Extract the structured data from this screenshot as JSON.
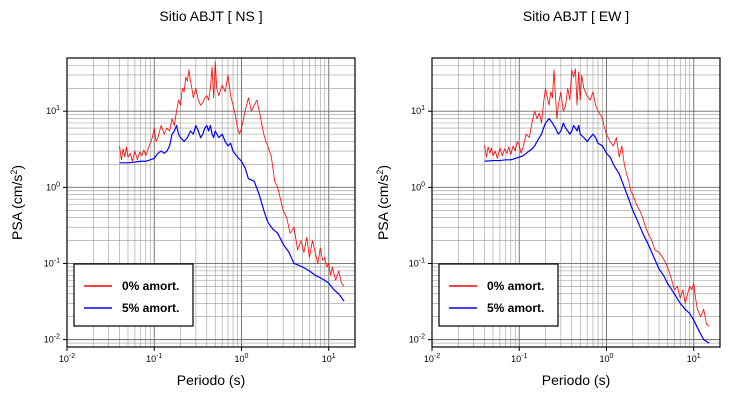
{
  "chart_data": [
    {
      "type": "line",
      "title": "Sitio ABJT [ NS ]",
      "xlabel": "Periodo (s)",
      "ylabel_main": "PSA (cm/s",
      "ylabel_sup": "2",
      "ylabel_close": ")",
      "x_scale": "log",
      "y_scale": "log",
      "xlim": [
        0.01,
        20
      ],
      "ylim": [
        0.008,
        50
      ],
      "grid": true,
      "legend_position": "bottom-left",
      "x_ticks": [
        {
          "value": 0.01,
          "base": "10",
          "exp": "-2"
        },
        {
          "value": 0.1,
          "base": "10",
          "exp": "-1"
        },
        {
          "value": 1,
          "base": "10",
          "exp": "0"
        },
        {
          "value": 10,
          "base": "10",
          "exp": "1"
        }
      ],
      "y_ticks": [
        {
          "value": 0.01,
          "base": "10",
          "exp": "-2"
        },
        {
          "value": 0.1,
          "base": "10",
          "exp": "-1"
        },
        {
          "value": 1,
          "base": "10",
          "exp": "0"
        },
        {
          "value": 10,
          "base": "10",
          "exp": "1"
        }
      ],
      "series": [
        {
          "name": "0% amort.",
          "color": "#ff0000",
          "x": [
            0.04,
            0.042,
            0.044,
            0.046,
            0.048,
            0.05,
            0.053,
            0.056,
            0.06,
            0.064,
            0.068,
            0.072,
            0.076,
            0.08,
            0.085,
            0.09,
            0.095,
            0.1,
            0.105,
            0.11,
            0.12,
            0.13,
            0.14,
            0.15,
            0.16,
            0.17,
            0.18,
            0.19,
            0.2,
            0.21,
            0.22,
            0.23,
            0.24,
            0.25,
            0.26,
            0.27,
            0.28,
            0.3,
            0.32,
            0.34,
            0.36,
            0.38,
            0.4,
            0.42,
            0.44,
            0.46,
            0.48,
            0.5,
            0.52,
            0.55,
            0.6,
            0.65,
            0.7,
            0.75,
            0.8,
            0.85,
            0.9,
            0.95,
            1.0,
            1.1,
            1.2,
            1.3,
            1.4,
            1.5,
            1.6,
            1.7,
            1.8,
            1.9,
            2.0,
            2.2,
            2.4,
            2.6,
            2.8,
            3.0,
            3.3,
            3.6,
            4.0,
            4.4,
            4.8,
            5.2,
            5.6,
            6.0,
            6.5,
            7.0,
            7.5,
            8.0,
            8.5,
            9.0,
            9.5,
            10.0,
            10.5,
            11,
            12,
            13,
            14,
            15
          ],
          "y": [
            3.5,
            2.3,
            3.2,
            2.5,
            3.4,
            2.5,
            2.8,
            2.2,
            3.0,
            2.3,
            2.9,
            2.6,
            3.1,
            2.6,
            3.2,
            3.8,
            4.5,
            6.0,
            4.0,
            4.5,
            6.5,
            5.0,
            6.0,
            5.5,
            8.0,
            6.5,
            10,
            14,
            12,
            20,
            18,
            28,
            25,
            35,
            25,
            20,
            15,
            20,
            14,
            12,
            13,
            15,
            16,
            14,
            20,
            38,
            15,
            45,
            20,
            16,
            22,
            18,
            30,
            16,
            12,
            9,
            6,
            5,
            6,
            10,
            15,
            10,
            12,
            14,
            10,
            7,
            5,
            4,
            3.5,
            2.5,
            1.2,
            1.0,
            0.7,
            0.5,
            0.4,
            0.25,
            0.3,
            0.15,
            0.2,
            0.14,
            0.22,
            0.12,
            0.2,
            0.14,
            0.1,
            0.16,
            0.11,
            0.12,
            0.09,
            0.1,
            0.07,
            0.09,
            0.06,
            0.08,
            0.055,
            0.05
          ]
        },
        {
          "name": "5% amort.",
          "color": "#0000ff",
          "x": [
            0.04,
            0.05,
            0.06,
            0.07,
            0.08,
            0.09,
            0.1,
            0.11,
            0.12,
            0.13,
            0.14,
            0.15,
            0.16,
            0.17,
            0.18,
            0.19,
            0.2,
            0.22,
            0.24,
            0.26,
            0.28,
            0.3,
            0.32,
            0.34,
            0.36,
            0.38,
            0.4,
            0.42,
            0.44,
            0.46,
            0.48,
            0.5,
            0.55,
            0.6,
            0.65,
            0.7,
            0.75,
            0.8,
            0.9,
            1.0,
            1.1,
            1.2,
            1.4,
            1.6,
            1.8,
            2.0,
            2.3,
            2.6,
            3.0,
            3.5,
            4.0,
            4.5,
            5.0,
            6.0,
            7.0,
            8.0,
            9.0,
            10.0,
            11.5,
            13.0,
            15.0
          ],
          "y": [
            2.1,
            2.1,
            2.15,
            2.2,
            2.2,
            2.3,
            2.4,
            2.8,
            3.0,
            2.8,
            3.0,
            3.5,
            5.0,
            5.5,
            6.5,
            5.0,
            4.5,
            4.0,
            4.5,
            5.5,
            5.0,
            6.5,
            5.5,
            4.5,
            5.0,
            6.0,
            6.5,
            5.5,
            6.5,
            5.0,
            4.5,
            5.5,
            4.5,
            5.0,
            4.0,
            3.5,
            3.8,
            3.0,
            2.5,
            2.2,
            1.8,
            1.3,
            1.2,
            0.8,
            0.5,
            0.35,
            0.28,
            0.25,
            0.18,
            0.14,
            0.1,
            0.095,
            0.09,
            0.08,
            0.07,
            0.065,
            0.06,
            0.055,
            0.045,
            0.04,
            0.032
          ]
        }
      ]
    },
    {
      "type": "line",
      "title": "Sitio ABJT [ EW ]",
      "xlabel": "Periodo (s)",
      "ylabel_main": "PSA (cm/s",
      "ylabel_sup": "2",
      "ylabel_close": ")",
      "x_scale": "log",
      "y_scale": "log",
      "xlim": [
        0.01,
        20
      ],
      "ylim": [
        0.008,
        50
      ],
      "grid": true,
      "legend_position": "bottom-left",
      "x_ticks": [
        {
          "value": 0.01,
          "base": "10",
          "exp": "-2"
        },
        {
          "value": 0.1,
          "base": "10",
          "exp": "-1"
        },
        {
          "value": 1,
          "base": "10",
          "exp": "0"
        },
        {
          "value": 10,
          "base": "10",
          "exp": "1"
        }
      ],
      "y_ticks": [
        {
          "value": 0.01,
          "base": "10",
          "exp": "-2"
        },
        {
          "value": 0.1,
          "base": "10",
          "exp": "-1"
        },
        {
          "value": 1,
          "base": "10",
          "exp": "0"
        },
        {
          "value": 10,
          "base": "10",
          "exp": "1"
        }
      ],
      "series": [
        {
          "name": "0% amort.",
          "color": "#ff0000",
          "x": [
            0.04,
            0.042,
            0.044,
            0.046,
            0.048,
            0.05,
            0.053,
            0.056,
            0.06,
            0.064,
            0.068,
            0.072,
            0.076,
            0.08,
            0.085,
            0.09,
            0.095,
            0.1,
            0.105,
            0.11,
            0.12,
            0.13,
            0.14,
            0.15,
            0.16,
            0.17,
            0.18,
            0.19,
            0.2,
            0.21,
            0.22,
            0.23,
            0.24,
            0.25,
            0.26,
            0.27,
            0.28,
            0.3,
            0.32,
            0.34,
            0.36,
            0.38,
            0.4,
            0.42,
            0.44,
            0.46,
            0.48,
            0.5,
            0.52,
            0.55,
            0.6,
            0.65,
            0.7,
            0.75,
            0.8,
            0.85,
            0.9,
            0.95,
            1.0,
            1.1,
            1.2,
            1.3,
            1.4,
            1.5,
            1.6,
            1.7,
            1.8,
            1.9,
            2.0,
            2.2,
            2.4,
            2.6,
            2.8,
            3.0,
            3.3,
            3.6,
            4.0,
            4.4,
            4.8,
            5.2,
            5.6,
            6.0,
            6.5,
            7.0,
            7.5,
            8.0,
            8.5,
            9.0,
            9.5,
            10.0,
            10.5,
            11,
            12,
            13,
            14,
            15
          ],
          "y": [
            3.6,
            2.5,
            3.4,
            2.8,
            3.3,
            2.6,
            3.0,
            2.4,
            3.3,
            2.6,
            3.2,
            2.8,
            3.4,
            2.7,
            3.5,
            3.0,
            4.0,
            3.6,
            2.8,
            3.3,
            5.0,
            4.5,
            7.0,
            10,
            8.0,
            9.5,
            7.0,
            13,
            20,
            15,
            12,
            18,
            15,
            35,
            16,
            8,
            12,
            18,
            10,
            12,
            20,
            14,
            35,
            28,
            36,
            12,
            33,
            14,
            30,
            20,
            16,
            14,
            18,
            12,
            10,
            9,
            8,
            6,
            5,
            4,
            3.5,
            4.5,
            2.5,
            3.5,
            2.0,
            1.5,
            1.2,
            0.9,
            0.8,
            0.6,
            0.5,
            0.4,
            0.3,
            0.25,
            0.2,
            0.15,
            0.14,
            0.12,
            0.1,
            0.08,
            0.06,
            0.045,
            0.05,
            0.035,
            0.045,
            0.03,
            0.04,
            0.05,
            0.045,
            0.055,
            0.035,
            0.025,
            0.02,
            0.025,
            0.016,
            0.015
          ]
        },
        {
          "name": "5% amort.",
          "color": "#0000ff",
          "x": [
            0.04,
            0.05,
            0.06,
            0.07,
            0.08,
            0.09,
            0.1,
            0.11,
            0.12,
            0.13,
            0.14,
            0.15,
            0.16,
            0.17,
            0.18,
            0.19,
            0.2,
            0.22,
            0.24,
            0.26,
            0.28,
            0.3,
            0.32,
            0.34,
            0.36,
            0.38,
            0.4,
            0.42,
            0.44,
            0.46,
            0.48,
            0.5,
            0.55,
            0.6,
            0.65,
            0.7,
            0.75,
            0.8,
            0.9,
            1.0,
            1.1,
            1.2,
            1.4,
            1.6,
            1.8,
            2.0,
            2.3,
            2.6,
            3.0,
            3.5,
            4.0,
            4.5,
            5.0,
            6.0,
            7.0,
            8.0,
            9.0,
            10.0,
            11.5,
            13.0,
            15.0
          ],
          "y": [
            2.2,
            2.25,
            2.25,
            2.3,
            2.3,
            2.4,
            2.5,
            2.6,
            2.8,
            3.0,
            3.2,
            3.5,
            4.0,
            4.5,
            5.0,
            6.0,
            7.0,
            8.0,
            7.0,
            6.0,
            5.0,
            5.5,
            7.0,
            6.0,
            5.5,
            5.0,
            5.5,
            6.5,
            6.0,
            5.5,
            6.5,
            5.0,
            4.5,
            4.0,
            4.5,
            5.0,
            4.5,
            3.8,
            3.5,
            2.8,
            2.5,
            2.0,
            1.5,
            1.0,
            0.7,
            0.5,
            0.35,
            0.25,
            0.18,
            0.12,
            0.085,
            0.07,
            0.055,
            0.04,
            0.03,
            0.025,
            0.022,
            0.018,
            0.013,
            0.01,
            0.009
          ]
        }
      ]
    }
  ]
}
